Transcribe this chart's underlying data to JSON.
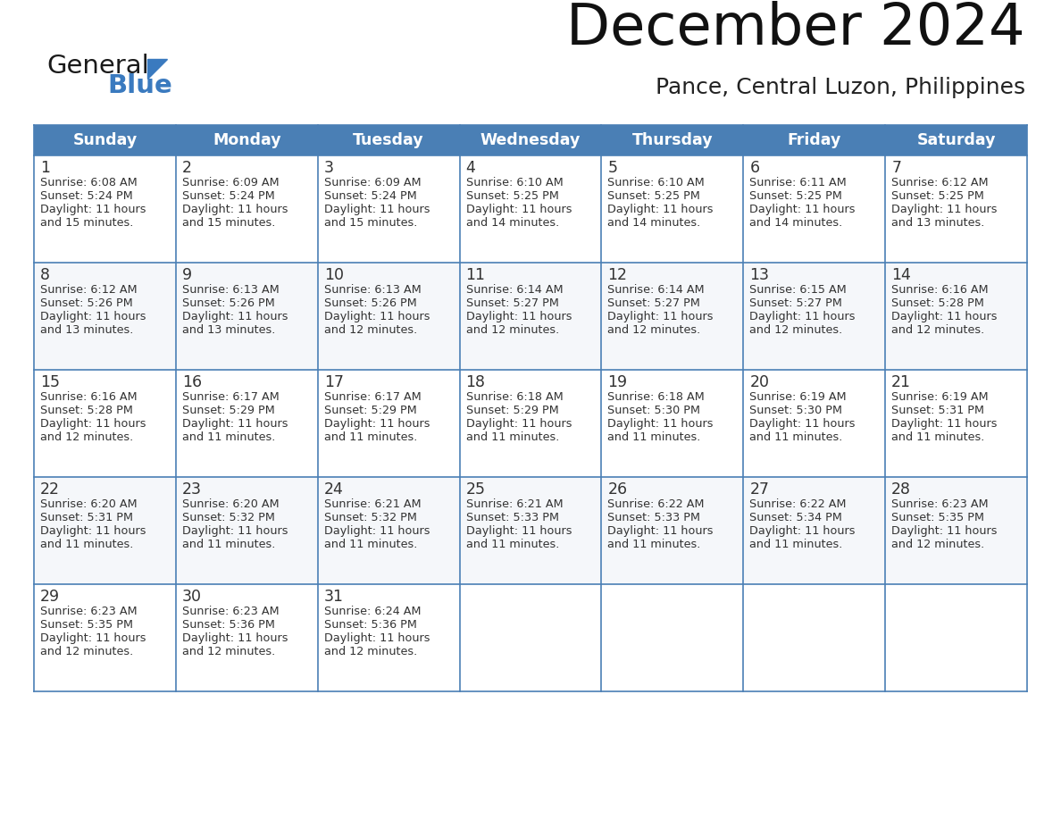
{
  "title": "December 2024",
  "subtitle": "Pance, Central Luzon, Philippines",
  "days_of_week": [
    "Sunday",
    "Monday",
    "Tuesday",
    "Wednesday",
    "Thursday",
    "Friday",
    "Saturday"
  ],
  "header_color": "#4a7fb5",
  "header_text_color": "#ffffff",
  "border_color": "#4a7fb5",
  "text_color": "#333333",
  "day_num_color": "#333333",
  "logo_color_general": "#1a1a1a",
  "logo_color_blue": "#3a7abf",
  "logo_triangle_color": "#3a7abf",
  "calendar_data": [
    [
      {
        "day": 1,
        "sunrise": "6:08 AM",
        "sunset": "5:24 PM",
        "daylight": "11 hours and 15 minutes."
      },
      {
        "day": 2,
        "sunrise": "6:09 AM",
        "sunset": "5:24 PM",
        "daylight": "11 hours and 15 minutes."
      },
      {
        "day": 3,
        "sunrise": "6:09 AM",
        "sunset": "5:24 PM",
        "daylight": "11 hours and 15 minutes."
      },
      {
        "day": 4,
        "sunrise": "6:10 AM",
        "sunset": "5:25 PM",
        "daylight": "11 hours and 14 minutes."
      },
      {
        "day": 5,
        "sunrise": "6:10 AM",
        "sunset": "5:25 PM",
        "daylight": "11 hours and 14 minutes."
      },
      {
        "day": 6,
        "sunrise": "6:11 AM",
        "sunset": "5:25 PM",
        "daylight": "11 hours and 14 minutes."
      },
      {
        "day": 7,
        "sunrise": "6:12 AM",
        "sunset": "5:25 PM",
        "daylight": "11 hours and 13 minutes."
      }
    ],
    [
      {
        "day": 8,
        "sunrise": "6:12 AM",
        "sunset": "5:26 PM",
        "daylight": "11 hours and 13 minutes."
      },
      {
        "day": 9,
        "sunrise": "6:13 AM",
        "sunset": "5:26 PM",
        "daylight": "11 hours and 13 minutes."
      },
      {
        "day": 10,
        "sunrise": "6:13 AM",
        "sunset": "5:26 PM",
        "daylight": "11 hours and 12 minutes."
      },
      {
        "day": 11,
        "sunrise": "6:14 AM",
        "sunset": "5:27 PM",
        "daylight": "11 hours and 12 minutes."
      },
      {
        "day": 12,
        "sunrise": "6:14 AM",
        "sunset": "5:27 PM",
        "daylight": "11 hours and 12 minutes."
      },
      {
        "day": 13,
        "sunrise": "6:15 AM",
        "sunset": "5:27 PM",
        "daylight": "11 hours and 12 minutes."
      },
      {
        "day": 14,
        "sunrise": "6:16 AM",
        "sunset": "5:28 PM",
        "daylight": "11 hours and 12 minutes."
      }
    ],
    [
      {
        "day": 15,
        "sunrise": "6:16 AM",
        "sunset": "5:28 PM",
        "daylight": "11 hours and 12 minutes."
      },
      {
        "day": 16,
        "sunrise": "6:17 AM",
        "sunset": "5:29 PM",
        "daylight": "11 hours and 11 minutes."
      },
      {
        "day": 17,
        "sunrise": "6:17 AM",
        "sunset": "5:29 PM",
        "daylight": "11 hours and 11 minutes."
      },
      {
        "day": 18,
        "sunrise": "6:18 AM",
        "sunset": "5:29 PM",
        "daylight": "11 hours and 11 minutes."
      },
      {
        "day": 19,
        "sunrise": "6:18 AM",
        "sunset": "5:30 PM",
        "daylight": "11 hours and 11 minutes."
      },
      {
        "day": 20,
        "sunrise": "6:19 AM",
        "sunset": "5:30 PM",
        "daylight": "11 hours and 11 minutes."
      },
      {
        "day": 21,
        "sunrise": "6:19 AM",
        "sunset": "5:31 PM",
        "daylight": "11 hours and 11 minutes."
      }
    ],
    [
      {
        "day": 22,
        "sunrise": "6:20 AM",
        "sunset": "5:31 PM",
        "daylight": "11 hours and 11 minutes."
      },
      {
        "day": 23,
        "sunrise": "6:20 AM",
        "sunset": "5:32 PM",
        "daylight": "11 hours and 11 minutes."
      },
      {
        "day": 24,
        "sunrise": "6:21 AM",
        "sunset": "5:32 PM",
        "daylight": "11 hours and 11 minutes."
      },
      {
        "day": 25,
        "sunrise": "6:21 AM",
        "sunset": "5:33 PM",
        "daylight": "11 hours and 11 minutes."
      },
      {
        "day": 26,
        "sunrise": "6:22 AM",
        "sunset": "5:33 PM",
        "daylight": "11 hours and 11 minutes."
      },
      {
        "day": 27,
        "sunrise": "6:22 AM",
        "sunset": "5:34 PM",
        "daylight": "11 hours and 11 minutes."
      },
      {
        "day": 28,
        "sunrise": "6:23 AM",
        "sunset": "5:35 PM",
        "daylight": "11 hours and 12 minutes."
      }
    ],
    [
      {
        "day": 29,
        "sunrise": "6:23 AM",
        "sunset": "5:35 PM",
        "daylight": "11 hours and 12 minutes."
      },
      {
        "day": 30,
        "sunrise": "6:23 AM",
        "sunset": "5:36 PM",
        "daylight": "11 hours and 12 minutes."
      },
      {
        "day": 31,
        "sunrise": "6:24 AM",
        "sunset": "5:36 PM",
        "daylight": "11 hours and 12 minutes."
      },
      null,
      null,
      null,
      null
    ]
  ]
}
